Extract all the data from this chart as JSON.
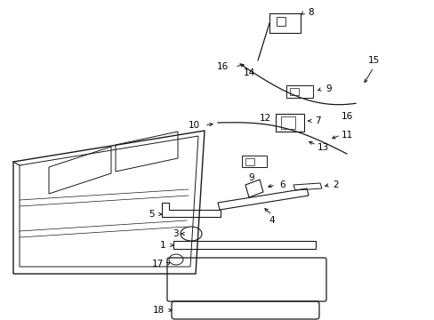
{
  "bg_color": "#ffffff",
  "lc": "#1a1a1a",
  "tc": "#000000",
  "fs": 7.5,
  "figsize": [
    4.89,
    3.6
  ],
  "dpi": 100
}
